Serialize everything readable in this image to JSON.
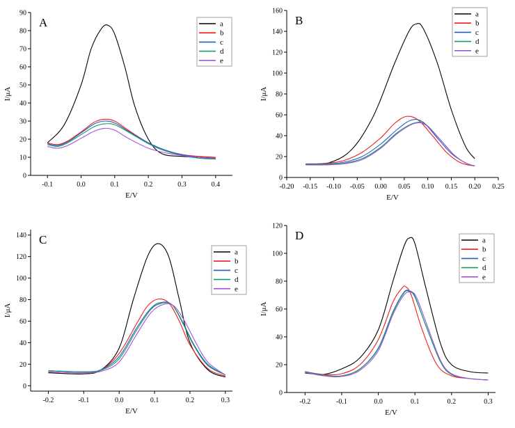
{
  "colors": {
    "a": "#000000",
    "b": "#ee1c1c",
    "c": "#1f5fbf",
    "d": "#1a9a6a",
    "e": "#a64fe0"
  },
  "chart_data": [
    {
      "type": "line",
      "panel_label": "A",
      "xlabel": "E/V",
      "ylabel": "I/μA",
      "xlim": [
        -0.15,
        0.45
      ],
      "ylim": [
        0,
        90
      ],
      "xticks": [
        -0.1,
        0.0,
        0.1,
        0.2,
        0.3,
        0.4
      ],
      "xtick_labels": [
        "-0.1",
        "0.0",
        "0.1",
        "0.2",
        "0.3",
        "0.4"
      ],
      "yticks": [
        0,
        10,
        20,
        30,
        40,
        50,
        60,
        70,
        80,
        90
      ],
      "ytick_labels": [
        "0",
        "10",
        "20",
        "30",
        "40",
        "50",
        "60",
        "70",
        "80",
        "90"
      ],
      "legend": [
        "a",
        "b",
        "c",
        "d",
        "e"
      ],
      "series": [
        {
          "name": "a",
          "x": [
            -0.1,
            -0.05,
            0.0,
            0.03,
            0.06,
            0.08,
            0.1,
            0.13,
            0.16,
            0.2,
            0.24,
            0.3,
            0.35,
            0.4
          ],
          "y": [
            18,
            28,
            50,
            70,
            81,
            83,
            78,
            60,
            38,
            20,
            12,
            10.5,
            10,
            9.5
          ]
        },
        {
          "name": "b",
          "x": [
            -0.1,
            -0.07,
            -0.04,
            0.0,
            0.04,
            0.07,
            0.1,
            0.14,
            0.2,
            0.25,
            0.3,
            0.35,
            0.4
          ],
          "y": [
            18,
            17,
            19,
            24,
            29.5,
            31,
            30,
            25,
            18,
            14,
            11.5,
            10.5,
            10
          ]
        },
        {
          "name": "c",
          "x": [
            -0.1,
            -0.07,
            -0.04,
            0.0,
            0.04,
            0.07,
            0.1,
            0.14,
            0.2,
            0.25,
            0.3,
            0.35,
            0.4
          ],
          "y": [
            17.5,
            16.5,
            18.5,
            23.5,
            28.5,
            30,
            29,
            24.5,
            18,
            14,
            11.5,
            10,
            9
          ]
        },
        {
          "name": "d",
          "x": [
            -0.1,
            -0.07,
            -0.04,
            0.0,
            0.04,
            0.07,
            0.1,
            0.14,
            0.2,
            0.25,
            0.3,
            0.35,
            0.4
          ],
          "y": [
            17,
            16,
            18,
            22.5,
            27,
            28.5,
            28,
            24,
            17.5,
            13.5,
            11,
            9.5,
            9
          ]
        },
        {
          "name": "e",
          "x": [
            -0.1,
            -0.07,
            -0.04,
            0.0,
            0.04,
            0.07,
            0.1,
            0.14,
            0.2,
            0.25,
            0.3,
            0.35,
            0.4
          ],
          "y": [
            16,
            15,
            16.5,
            20.5,
            24.5,
            26,
            25,
            20.5,
            15,
            12.5,
            11,
            10,
            9.5
          ]
        }
      ]
    },
    {
      "type": "line",
      "panel_label": "B",
      "xlabel": "E/V",
      "ylabel": "I/μA",
      "xlim": [
        -0.2,
        0.25
      ],
      "ylim": [
        0,
        160
      ],
      "xticks": [
        -0.2,
        -0.15,
        -0.1,
        -0.05,
        0.0,
        0.05,
        0.1,
        0.15,
        0.2,
        0.25
      ],
      "xtick_labels": [
        "-0.20",
        "-0.15",
        "-0.10",
        "-0.05",
        "0.00",
        "0.05",
        "0.10",
        "0.15",
        "0.20",
        "0.25"
      ],
      "yticks": [
        0,
        20,
        40,
        60,
        80,
        100,
        120,
        140,
        160
      ],
      "ytick_labels": [
        "0",
        "20",
        "40",
        "60",
        "80",
        "100",
        "120",
        "140",
        "160"
      ],
      "legend": [
        "a",
        "b",
        "c",
        "d",
        "e"
      ],
      "series": [
        {
          "name": "a",
          "x": [
            -0.16,
            -0.12,
            -0.08,
            -0.05,
            -0.02,
            0.0,
            0.03,
            0.06,
            0.075,
            0.09,
            0.12,
            0.15,
            0.18,
            0.2
          ],
          "y": [
            12,
            13,
            20,
            33,
            55,
            75,
            110,
            140,
            147,
            143,
            110,
            65,
            30,
            18
          ]
        },
        {
          "name": "b",
          "x": [
            -0.16,
            -0.12,
            -0.08,
            -0.04,
            0.0,
            0.03,
            0.055,
            0.08,
            0.11,
            0.14,
            0.17,
            0.2
          ],
          "y": [
            13,
            13.5,
            16,
            24,
            38,
            52,
            58.5,
            55,
            40,
            24,
            14,
            11
          ]
        },
        {
          "name": "c",
          "x": [
            -0.16,
            -0.12,
            -0.08,
            -0.04,
            0.0,
            0.035,
            0.065,
            0.09,
            0.12,
            0.15,
            0.18,
            0.2
          ],
          "y": [
            13,
            13,
            14.5,
            20,
            32,
            46,
            55,
            53,
            38,
            23,
            14,
            11
          ]
        },
        {
          "name": "d",
          "x": [
            -0.16,
            -0.12,
            -0.08,
            -0.04,
            0.0,
            0.035,
            0.07,
            0.095,
            0.125,
            0.155,
            0.18,
            0.2
          ],
          "y": [
            12.5,
            12.5,
            13.5,
            18,
            29,
            43,
            52,
            51,
            37,
            22,
            14,
            11
          ]
        },
        {
          "name": "e",
          "x": [
            -0.16,
            -0.12,
            -0.08,
            -0.04,
            0.0,
            0.035,
            0.07,
            0.095,
            0.125,
            0.155,
            0.18,
            0.2
          ],
          "y": [
            12,
            12,
            13,
            17,
            28,
            42,
            51.5,
            50.5,
            37,
            22,
            14,
            11
          ]
        }
      ]
    },
    {
      "type": "line",
      "panel_label": "C",
      "xlabel": "E/V",
      "ylabel": "I/μA",
      "xlim": [
        -0.25,
        0.32
      ],
      "ylim": [
        -5,
        145
      ],
      "xticks": [
        -0.2,
        -0.1,
        0.0,
        0.1,
        0.2,
        0.3
      ],
      "xtick_labels": [
        "-0.2",
        "-0.1",
        "0.0",
        "0.1",
        "0.2",
        "0.3"
      ],
      "yticks": [
        0,
        20,
        40,
        60,
        80,
        100,
        120,
        140
      ],
      "ytick_labels": [
        "0",
        "20",
        "40",
        "60",
        "80",
        "100",
        "120",
        "140"
      ],
      "legend": [
        "a",
        "b",
        "c",
        "d",
        "e"
      ],
      "series": [
        {
          "name": "a",
          "x": [
            -0.2,
            -0.1,
            -0.05,
            0.0,
            0.04,
            0.08,
            0.11,
            0.14,
            0.17,
            0.2,
            0.25,
            0.3
          ],
          "y": [
            12,
            11,
            15,
            35,
            80,
            120,
            132,
            120,
            80,
            40,
            15,
            8
          ]
        },
        {
          "name": "b",
          "x": [
            -0.2,
            -0.1,
            -0.05,
            0.0,
            0.05,
            0.08,
            0.11,
            0.14,
            0.17,
            0.2,
            0.25,
            0.3
          ],
          "y": [
            13,
            12,
            15,
            30,
            58,
            74,
            80.5,
            77,
            60,
            38,
            16,
            9
          ]
        },
        {
          "name": "c",
          "x": [
            -0.2,
            -0.1,
            -0.05,
            0.0,
            0.05,
            0.09,
            0.12,
            0.15,
            0.18,
            0.21,
            0.25,
            0.3
          ],
          "y": [
            14,
            13,
            15,
            27,
            54,
            72,
            77.5,
            75,
            58,
            38,
            19,
            10
          ]
        },
        {
          "name": "d",
          "x": [
            -0.2,
            -0.1,
            -0.05,
            0.0,
            0.05,
            0.09,
            0.12,
            0.15,
            0.18,
            0.21,
            0.25,
            0.3
          ],
          "y": [
            14,
            13,
            14.5,
            25,
            52,
            71,
            76.5,
            75,
            59,
            39,
            20,
            10
          ]
        },
        {
          "name": "e",
          "x": [
            -0.2,
            -0.1,
            -0.05,
            0.0,
            0.05,
            0.09,
            0.125,
            0.155,
            0.185,
            0.215,
            0.25,
            0.3
          ],
          "y": [
            13,
            12,
            13.5,
            22,
            48,
            68,
            75.5,
            74,
            60,
            41,
            22,
            10
          ]
        }
      ]
    },
    {
      "type": "line",
      "panel_label": "D",
      "xlabel": "E/V",
      "ylabel": "I/μA",
      "xlim": [
        -0.25,
        0.32
      ],
      "ylim": [
        0,
        120
      ],
      "xticks": [
        -0.2,
        -0.1,
        0.0,
        0.1,
        0.2,
        0.3
      ],
      "xtick_labels": [
        "-0.2",
        "-0.1",
        "0.0",
        "0.1",
        "0.2",
        "0.3"
      ],
      "yticks": [
        0,
        20,
        40,
        60,
        80,
        100,
        120
      ],
      "ytick_labels": [
        "0",
        "20",
        "40",
        "60",
        "80",
        "100",
        "120"
      ],
      "legend": [
        "a",
        "b",
        "c",
        "d",
        "e"
      ],
      "series": [
        {
          "name": "a",
          "x": [
            -0.2,
            -0.15,
            -0.1,
            -0.05,
            0.0,
            0.04,
            0.07,
            0.085,
            0.1,
            0.13,
            0.17,
            0.2,
            0.25,
            0.3
          ],
          "y": [
            14,
            13,
            17,
            25,
            45,
            80,
            105,
            111,
            107,
            75,
            35,
            20,
            15,
            14
          ]
        },
        {
          "name": "b",
          "x": [
            -0.2,
            -0.15,
            -0.1,
            -0.05,
            0.0,
            0.04,
            0.065,
            0.075,
            0.09,
            0.12,
            0.16,
            0.2,
            0.25,
            0.3
          ],
          "y": [
            15,
            13,
            13.5,
            20,
            38,
            65,
            75,
            76,
            70,
            45,
            20,
            12,
            10,
            9
          ]
        },
        {
          "name": "c",
          "x": [
            -0.2,
            -0.15,
            -0.1,
            -0.05,
            0.0,
            0.04,
            0.07,
            0.085,
            0.1,
            0.13,
            0.17,
            0.2,
            0.25,
            0.3
          ],
          "y": [
            15,
            12.5,
            12,
            17,
            32,
            58,
            72,
            73,
            69,
            48,
            22,
            13,
            10,
            9
          ]
        },
        {
          "name": "d",
          "x": [
            -0.2,
            -0.15,
            -0.1,
            -0.05,
            0.0,
            0.04,
            0.07,
            0.085,
            0.1,
            0.13,
            0.17,
            0.2,
            0.25,
            0.3
          ],
          "y": [
            15,
            12.5,
            12,
            17,
            31.5,
            57.5,
            71.5,
            72.5,
            68.5,
            48,
            22,
            13,
            10,
            9
          ]
        },
        {
          "name": "e",
          "x": [
            -0.2,
            -0.15,
            -0.1,
            -0.05,
            0.0,
            0.04,
            0.07,
            0.09,
            0.105,
            0.135,
            0.17,
            0.2,
            0.25,
            0.3
          ],
          "y": [
            14.5,
            12,
            11.5,
            16,
            30,
            56,
            70,
            72,
            68,
            47,
            23,
            13.5,
            10,
            9
          ]
        }
      ]
    }
  ]
}
